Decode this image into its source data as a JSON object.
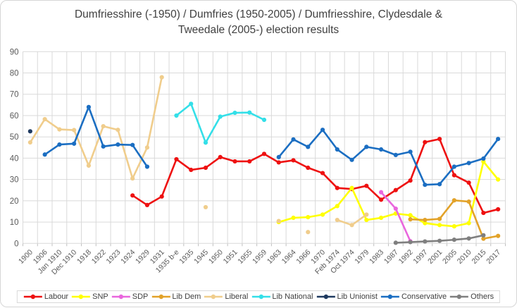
{
  "title": "Dumfriesshire (-1950) / Dumfries (1950-2005) / Dumfriesshire, Clydesdale &\nTweedale (2005-) election results",
  "chart_data": {
    "type": "line",
    "title": "Dumfriesshire (-1950) / Dumfries (1950-2005) / Dumfriesshire, Clydesdale & Tweedale (2005-) election results",
    "xlabel": "",
    "ylabel": "",
    "ylim": [
      0,
      90
    ],
    "yticks": [
      0,
      10,
      20,
      30,
      40,
      50,
      60,
      70,
      80,
      90
    ],
    "grid": true,
    "grid_color": "#d9d9d9",
    "axis_text_color": "#595959",
    "legend_position": "bottom",
    "categories": [
      "1900",
      "1906",
      "Jan 1910",
      "Dec 1910",
      "1918",
      "1922",
      "1923",
      "1924",
      "1929",
      "1931",
      "1935 b-e",
      "1935",
      "1945",
      "1950",
      "1951",
      "1955",
      "1959",
      "1963",
      "1964",
      "1966",
      "1970",
      "Feb 1974",
      "Oct 1974",
      "1979",
      "1983",
      "1987",
      "1992",
      "1997",
      "2001",
      "2005",
      "2010",
      "2015",
      "2017"
    ],
    "series": [
      {
        "name": "Labour",
        "color": "#ee1111",
        "values": [
          null,
          null,
          null,
          null,
          null,
          null,
          null,
          22.5,
          18,
          22,
          39.5,
          34.5,
          35.5,
          40.5,
          38.5,
          38.5,
          42,
          38,
          39,
          35.5,
          33,
          26,
          25.5,
          27,
          20.5,
          25,
          29.5,
          47.5,
          49,
          32,
          28.5,
          14.3,
          16
        ]
      },
      {
        "name": "SNP",
        "color": "#ffff00",
        "values": [
          null,
          null,
          null,
          null,
          null,
          null,
          null,
          null,
          null,
          null,
          null,
          null,
          null,
          null,
          null,
          null,
          null,
          10,
          12,
          12.3,
          13.5,
          17.5,
          26,
          11,
          12,
          14,
          13.2,
          9.5,
          8.6,
          8,
          9.5,
          38.4,
          30
        ]
      },
      {
        "name": "SDP",
        "color": "#e966dd",
        "values": [
          null,
          null,
          null,
          null,
          null,
          null,
          null,
          null,
          null,
          null,
          null,
          null,
          null,
          null,
          null,
          null,
          null,
          null,
          null,
          null,
          null,
          null,
          null,
          null,
          24,
          16.3,
          1,
          null,
          null,
          null,
          null,
          null,
          null
        ]
      },
      {
        "name": "Lib Dem",
        "color": "#e2a229",
        "values": [
          null,
          null,
          null,
          null,
          null,
          null,
          null,
          null,
          null,
          null,
          null,
          null,
          null,
          null,
          null,
          null,
          null,
          null,
          null,
          null,
          null,
          null,
          null,
          null,
          null,
          null,
          11.3,
          11,
          11.5,
          20.2,
          19.6,
          2.2,
          3.5
        ]
      },
      {
        "name": "Liberal",
        "color": "#f0cd8c",
        "values": [
          47.4,
          58.3,
          53.5,
          53.2,
          36.5,
          55,
          53.3,
          30.5,
          45,
          78,
          null,
          null,
          17,
          null,
          null,
          null,
          null,
          10.5,
          null,
          5.3,
          null,
          11,
          8.6,
          13.5,
          null,
          null,
          null,
          null,
          null,
          null,
          null,
          null,
          null
        ]
      },
      {
        "name": "Lib National",
        "color": "#33dfe8",
        "values": [
          null,
          null,
          null,
          null,
          null,
          null,
          null,
          null,
          null,
          null,
          60,
          65.5,
          47.3,
          59.5,
          61.3,
          61.4,
          58,
          null,
          null,
          null,
          null,
          null,
          null,
          null,
          null,
          null,
          null,
          null,
          null,
          null,
          null,
          null,
          null
        ]
      },
      {
        "name": "Lib Unionist",
        "color": "#1f3a60",
        "values": [
          52.6,
          null,
          null,
          null,
          null,
          null,
          null,
          null,
          null,
          null,
          null,
          null,
          null,
          null,
          null,
          null,
          null,
          null,
          null,
          null,
          null,
          null,
          null,
          null,
          null,
          null,
          null,
          null,
          null,
          null,
          null,
          null,
          null
        ]
      },
      {
        "name": "Conservative",
        "color": "#1b6ec2",
        "values": [
          null,
          41.7,
          46.4,
          46.8,
          64,
          45.5,
          46.4,
          46.2,
          36,
          null,
          null,
          null,
          null,
          null,
          null,
          null,
          null,
          40.5,
          48.8,
          45.3,
          53.3,
          44.1,
          39.2,
          45.3,
          44.1,
          41.5,
          43,
          27.5,
          27.8,
          36,
          37.7,
          39.8,
          49
        ]
      },
      {
        "name": "Others",
        "color": "#7f7f7f",
        "values": [
          null,
          null,
          null,
          null,
          null,
          null,
          null,
          null,
          null,
          null,
          null,
          null,
          null,
          null,
          null,
          null,
          null,
          null,
          null,
          null,
          null,
          null,
          null,
          null,
          null,
          0.3,
          0.6,
          0.9,
          1.2,
          1.7,
          2.3,
          3.8,
          null
        ]
      }
    ]
  }
}
